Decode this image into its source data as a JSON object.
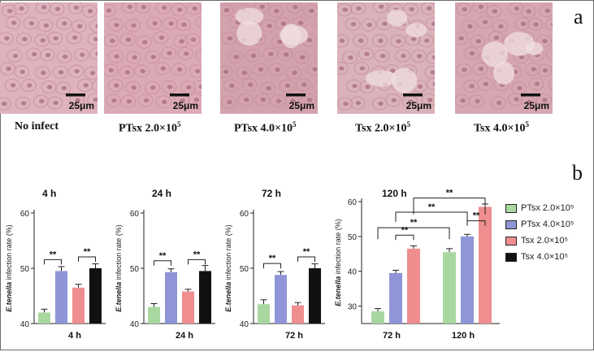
{
  "panel_labels": {
    "a": "a",
    "b": "b"
  },
  "micrographs": [
    {
      "label": "No infect",
      "scale": "25μm",
      "tint": "#dfb3bd"
    },
    {
      "label": "PTsx 2.0×10",
      "sup": "5",
      "scale": "25μm",
      "tint": "#dcaab5"
    },
    {
      "label": "PTsx 4.0×10",
      "sup": "5",
      "scale": "25μm",
      "tint": "#d3a2ad"
    },
    {
      "label": "Tsx 2.0×10",
      "sup": "5",
      "scale": "25μm",
      "tint": "#dab2b9"
    },
    {
      "label": "Tsx 4.0×10",
      "sup": "5",
      "scale": "25μm",
      "tint": "#d6a7b1"
    }
  ],
  "colors": {
    "PTsx 2.0×10⁵": "#a9d7a0",
    "PTsx 4.0×10⁵": "#8f95d6",
    "Tsx 2.0×10⁵": "#ef8e8e",
    "Tsx 4.0×10⁵": "#111111"
  },
  "legend": [
    "PTsx 2.0×10⁵",
    "PTsx 4.0×10⁵",
    "Tsx 2.0×10⁵",
    "Tsx 4.0×10⁵"
  ],
  "chart_data": [
    {
      "type": "bar",
      "title": "4 h",
      "xlabel": "4 h",
      "ylabel_italic": "E.tenella",
      "ylabel_rest": " infection rate (%)",
      "ylim": [
        40,
        60
      ],
      "yticks": [
        40,
        50,
        60
      ],
      "series": [
        {
          "name": "PTsx 2.0×10⁵",
          "values": [
            42
          ]
        },
        {
          "name": "PTsx 4.0×10⁵",
          "values": [
            49.5
          ]
        },
        {
          "name": "Tsx 2.0×10⁵",
          "values": [
            46.5
          ]
        },
        {
          "name": "Tsx 4.0×10⁵",
          "values": [
            50
          ]
        }
      ],
      "errors": [
        0.6,
        0.8,
        0.6,
        0.8
      ],
      "significance": [
        {
          "from": 0,
          "to": 1,
          "label": "**"
        },
        {
          "from": 2,
          "to": 3,
          "label": "**"
        }
      ]
    },
    {
      "type": "bar",
      "title": "24 h",
      "xlabel": "24 h",
      "ylabel_italic": "E.tenella",
      "ylabel_rest": " infection rate (%)",
      "ylim": [
        40,
        60
      ],
      "yticks": [
        40,
        50,
        60
      ],
      "series": [
        {
          "name": "PTsx 2.0×10⁵",
          "values": [
            43
          ]
        },
        {
          "name": "PTsx 4.0×10⁵",
          "values": [
            49.3
          ]
        },
        {
          "name": "Tsx 2.0×10⁵",
          "values": [
            45.8
          ]
        },
        {
          "name": "Tsx 4.0×10⁵",
          "values": [
            49.5
          ]
        }
      ],
      "errors": [
        0.6,
        0.6,
        0.4,
        1.0
      ],
      "significance": [
        {
          "from": 0,
          "to": 1,
          "label": "**"
        },
        {
          "from": 2,
          "to": 3,
          "label": "**"
        }
      ]
    },
    {
      "type": "bar",
      "title": "72 h",
      "xlabel": "72 h",
      "ylabel_italic": "E.tenella",
      "ylabel_rest": " infection rate (%)",
      "ylim": [
        40,
        60
      ],
      "yticks": [
        40,
        50,
        60
      ],
      "series": [
        {
          "name": "PTsx 2.0×10⁵",
          "values": [
            43.5
          ]
        },
        {
          "name": "PTsx 4.0×10⁵",
          "values": [
            48.8
          ]
        },
        {
          "name": "Tsx 2.0×10⁵",
          "values": [
            43.3
          ]
        },
        {
          "name": "Tsx 4.0×10⁵",
          "values": [
            50
          ]
        }
      ],
      "errors": [
        0.8,
        0.6,
        0.5,
        0.8
      ],
      "significance": [
        {
          "from": 0,
          "to": 1,
          "label": "**"
        },
        {
          "from": 2,
          "to": 3,
          "label": "**"
        }
      ]
    },
    {
      "type": "bar",
      "title": "120 h",
      "categories": [
        "72 h",
        "120 h"
      ],
      "ylabel_italic": "E.tenella",
      "ylabel_rest": " infection rate (%)",
      "ylim": [
        25,
        60
      ],
      "yticks": [
        30,
        40,
        50,
        60
      ],
      "series": [
        {
          "name": "PTsx 2.0×10⁵",
          "values": [
            28.5,
            45.5
          ]
        },
        {
          "name": "PTsx 4.0×10⁵",
          "values": [
            39.5,
            50
          ]
        },
        {
          "name": "Tsx 2.0×10⁵",
          "values": [
            46.5,
            58.5
          ]
        }
      ],
      "errors": [
        [
          0.8,
          1.0
        ],
        [
          0.8,
          0.6
        ],
        [
          0.8,
          0.8
        ]
      ],
      "significance": [
        {
          "label": "**"
        },
        {
          "label": "**"
        },
        {
          "label": "**"
        },
        {
          "label": "**"
        },
        {
          "label": "**"
        }
      ]
    }
  ]
}
